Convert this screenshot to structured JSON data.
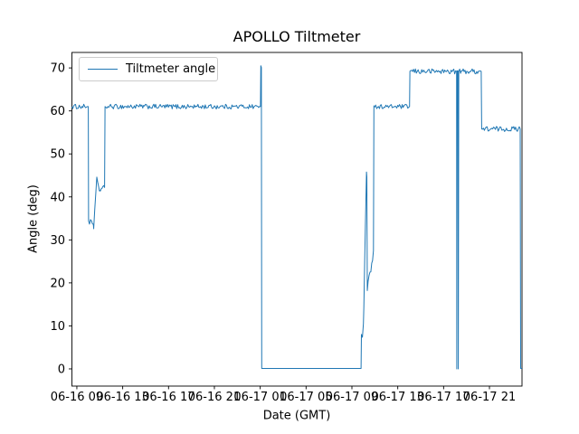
{
  "chart_data": {
    "type": "line",
    "title": "APOLLO Tiltmeter",
    "xlabel": "Date (GMT)",
    "ylabel": "Angle (deg)",
    "legend": {
      "position": "upper left",
      "entries": [
        "Tiltmeter angle"
      ]
    },
    "line_color": "#1f77b4",
    "grid": false,
    "x_unit": "hours since 06-16 00:00 GMT",
    "xlim": [
      8.57,
      47.84
    ],
    "ylim": [
      -4.0,
      73.6
    ],
    "y_ticks": [
      0,
      10,
      20,
      30,
      40,
      50,
      60,
      70
    ],
    "x_ticks": [
      9,
      13,
      17,
      21,
      25,
      29,
      33,
      37,
      41,
      45
    ],
    "x_tick_labels": [
      "06-16 09",
      "06-16 13",
      "06-16 17",
      "06-16 21",
      "06-17 01",
      "06-17 05",
      "06-17 09",
      "06-17 13",
      "06-17 17",
      "06-17 21"
    ],
    "series_name": "Tiltmeter angle",
    "segments_comment": "each segment: [t_start_h, t_end_h, value_start_deg, value_end_deg, noise_amp_deg]",
    "segments": [
      [
        8.57,
        10.0,
        61.0,
        61.0,
        0.55
      ],
      [
        10.0,
        10.02,
        61.0,
        34.8,
        0
      ],
      [
        10.02,
        10.44,
        34.4,
        33.6,
        0.7
      ],
      [
        10.44,
        10.47,
        33.6,
        32.6,
        0
      ],
      [
        10.47,
        10.74,
        32.8,
        44.6,
        0.25
      ],
      [
        10.74,
        10.97,
        44.6,
        41.4,
        0.2
      ],
      [
        10.97,
        11.42,
        41.6,
        42.2,
        0.55
      ],
      [
        11.42,
        11.46,
        42.2,
        61.0,
        0
      ],
      [
        11.46,
        25.02,
        61.0,
        61.0,
        0.55
      ],
      [
        25.02,
        25.05,
        61.0,
        70.5,
        0
      ],
      [
        25.05,
        25.1,
        70.5,
        70.1,
        0
      ],
      [
        25.1,
        25.13,
        70.1,
        0.1,
        0
      ],
      [
        25.13,
        33.8,
        0.1,
        0.1,
        0
      ],
      [
        33.8,
        33.83,
        0.1,
        8.0,
        0
      ],
      [
        33.83,
        34.0,
        8.0,
        10.5,
        2.4
      ],
      [
        34.0,
        34.04,
        10.5,
        14.5,
        0
      ],
      [
        34.04,
        34.27,
        14.5,
        45.8,
        0.25
      ],
      [
        34.27,
        34.3,
        45.8,
        44.6,
        0
      ],
      [
        34.3,
        34.34,
        44.6,
        18.2,
        0
      ],
      [
        34.34,
        34.88,
        18.2,
        27.5,
        1.0
      ],
      [
        34.88,
        34.92,
        27.5,
        61.2,
        0
      ],
      [
        34.92,
        38.03,
        61.0,
        61.0,
        0.5
      ],
      [
        38.03,
        38.06,
        61.0,
        69.2,
        0
      ],
      [
        38.06,
        42.13,
        69.2,
        69.2,
        0.6
      ],
      [
        42.13,
        42.15,
        69.2,
        0.0,
        0
      ],
      [
        42.15,
        42.19,
        0.0,
        69.3,
        0
      ],
      [
        42.19,
        42.26,
        69.3,
        69.3,
        0.3
      ],
      [
        42.26,
        42.28,
        69.3,
        0.0,
        0
      ],
      [
        42.28,
        42.32,
        0.0,
        69.2,
        0
      ],
      [
        42.32,
        44.28,
        69.2,
        69.2,
        0.6
      ],
      [
        44.28,
        44.32,
        69.2,
        56.2,
        0
      ],
      [
        44.32,
        47.68,
        55.8,
        55.8,
        0.6
      ],
      [
        47.68,
        47.72,
        55.8,
        0.1,
        0
      ],
      [
        47.72,
        47.84,
        0.1,
        0.1,
        0
      ]
    ]
  }
}
